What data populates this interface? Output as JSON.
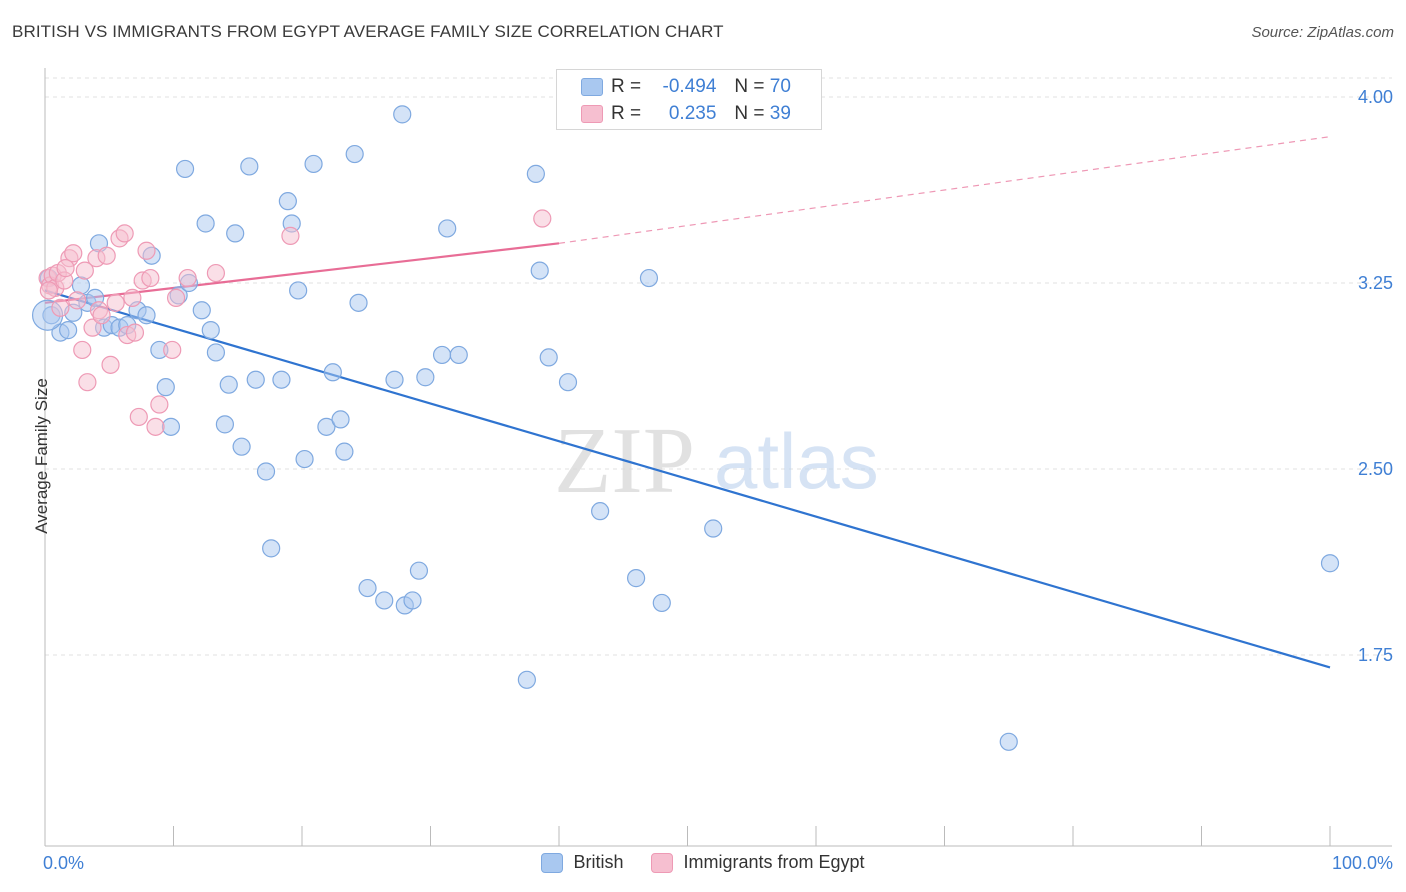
{
  "title": "BRITISH VS IMMIGRANTS FROM EGYPT AVERAGE FAMILY SIZE CORRELATION CHART",
  "source": "Source: ZipAtlas.com",
  "watermark": {
    "zip": "ZIP",
    "atlas": "atlas"
  },
  "legend": {
    "rows": [
      {
        "r_label": "R =",
        "r_value": "-0.494",
        "n_label": "N =",
        "n_value": "70"
      },
      {
        "r_label": "R =",
        "r_value": "0.235",
        "n_label": "N =",
        "n_value": "39"
      }
    ]
  },
  "bottom_legend": [
    "British",
    "Immigrants from Egypt"
  ],
  "colors": {
    "british_fill": "#a9c8f0",
    "british_stroke": "#7fa9e0",
    "british_line": "#2f74d0",
    "egypt_fill": "#f6bfd0",
    "egypt_stroke": "#ee9ab5",
    "egypt_line": "#e86d96",
    "axis_text": "#3f7fd4",
    "grid": "#e2e2e2"
  },
  "chart_data": {
    "type": "scatter",
    "title": "BRITISH VS IMMIGRANTS FROM EGYPT AVERAGE FAMILY SIZE CORRELATION CHART",
    "xlabel": "",
    "ylabel": "Average Family Size",
    "xlim": [
      0,
      100
    ],
    "ylim": [
      1.0,
      4.15
    ],
    "x_tick_labels": [
      "0.0%",
      "100.0%"
    ],
    "y_ticks": [
      1.75,
      2.5,
      3.25,
      4.0
    ],
    "y_tick_labels": [
      "1.75",
      "2.50",
      "3.25",
      "4.00"
    ],
    "grid": true,
    "legend_position": "top-center",
    "series": [
      {
        "name": "British",
        "r": -0.494,
        "n": 70,
        "trend": {
          "x": [
            0,
            100
          ],
          "y": [
            3.22,
            1.7
          ]
        },
        "points": [
          [
            0.3,
            3.27
          ],
          [
            0.5,
            3.12
          ],
          [
            1.2,
            3.05
          ],
          [
            1.8,
            3.06
          ],
          [
            2.2,
            3.13
          ],
          [
            2.8,
            3.24
          ],
          [
            3.3,
            3.17
          ],
          [
            3.9,
            3.19
          ],
          [
            4.2,
            3.41
          ],
          [
            4.6,
            3.07
          ],
          [
            5.2,
            3.08
          ],
          [
            5.8,
            3.07
          ],
          [
            6.4,
            3.08
          ],
          [
            7.2,
            3.14
          ],
          [
            7.9,
            3.12
          ],
          [
            8.3,
            3.36
          ],
          [
            8.9,
            2.98
          ],
          [
            9.4,
            2.83
          ],
          [
            9.8,
            2.67
          ],
          [
            10.4,
            3.2
          ],
          [
            10.9,
            3.71
          ],
          [
            11.2,
            3.25
          ],
          [
            12.2,
            3.14
          ],
          [
            12.5,
            3.49
          ],
          [
            12.9,
            3.06
          ],
          [
            13.3,
            2.97
          ],
          [
            14.0,
            2.68
          ],
          [
            14.3,
            2.84
          ],
          [
            14.8,
            3.45
          ],
          [
            15.3,
            2.59
          ],
          [
            15.9,
            3.72
          ],
          [
            16.4,
            2.86
          ],
          [
            17.2,
            2.49
          ],
          [
            17.6,
            2.18
          ],
          [
            18.4,
            2.86
          ],
          [
            18.9,
            3.58
          ],
          [
            19.2,
            3.49
          ],
          [
            19.7,
            3.22
          ],
          [
            20.2,
            2.54
          ],
          [
            20.9,
            3.73
          ],
          [
            21.9,
            2.67
          ],
          [
            22.4,
            2.89
          ],
          [
            23.0,
            2.7
          ],
          [
            23.3,
            2.57
          ],
          [
            24.1,
            3.77
          ],
          [
            24.4,
            3.17
          ],
          [
            25.1,
            2.02
          ],
          [
            26.4,
            1.97
          ],
          [
            27.2,
            2.86
          ],
          [
            27.8,
            3.93
          ],
          [
            28.0,
            1.95
          ],
          [
            28.6,
            1.97
          ],
          [
            29.1,
            2.09
          ],
          [
            29.6,
            2.87
          ],
          [
            30.9,
            2.96
          ],
          [
            31.3,
            3.47
          ],
          [
            32.2,
            2.96
          ],
          [
            37.5,
            1.65
          ],
          [
            38.2,
            3.69
          ],
          [
            38.5,
            3.3
          ],
          [
            39.2,
            2.95
          ],
          [
            40.7,
            2.85
          ],
          [
            43.2,
            2.33
          ],
          [
            46.0,
            2.06
          ],
          [
            47.0,
            3.27
          ],
          [
            48.0,
            1.96
          ],
          [
            52.0,
            2.26
          ],
          [
            75.0,
            1.4
          ],
          [
            100.0,
            2.12
          ],
          [
            0.2,
            3.12
          ]
        ]
      },
      {
        "name": "Immigrants from Egypt",
        "r": 0.235,
        "n": 39,
        "trend": {
          "x": [
            0,
            40
          ],
          "y": [
            3.17,
            3.41
          ]
        },
        "trend_extended": {
          "x": [
            40,
            100
          ],
          "y": [
            3.41,
            3.84
          ]
        },
        "points": [
          [
            0.2,
            3.27
          ],
          [
            0.4,
            3.24
          ],
          [
            0.6,
            3.28
          ],
          [
            0.8,
            3.23
          ],
          [
            1.0,
            3.29
          ],
          [
            1.2,
            3.15
          ],
          [
            1.5,
            3.26
          ],
          [
            1.9,
            3.35
          ],
          [
            2.2,
            3.37
          ],
          [
            2.5,
            3.18
          ],
          [
            2.9,
            2.98
          ],
          [
            3.1,
            3.3
          ],
          [
            3.3,
            2.85
          ],
          [
            3.7,
            3.07
          ],
          [
            4.0,
            3.35
          ],
          [
            4.2,
            3.14
          ],
          [
            4.4,
            3.12
          ],
          [
            4.8,
            3.36
          ],
          [
            5.1,
            2.92
          ],
          [
            5.5,
            3.17
          ],
          [
            5.8,
            3.43
          ],
          [
            6.2,
            3.45
          ],
          [
            6.4,
            3.04
          ],
          [
            6.8,
            3.19
          ],
          [
            7.0,
            3.05
          ],
          [
            7.3,
            2.71
          ],
          [
            7.6,
            3.26
          ],
          [
            7.9,
            3.38
          ],
          [
            8.2,
            3.27
          ],
          [
            8.6,
            2.67
          ],
          [
            8.9,
            2.76
          ],
          [
            9.9,
            2.98
          ],
          [
            10.2,
            3.19
          ],
          [
            11.1,
            3.27
          ],
          [
            13.3,
            3.29
          ],
          [
            19.1,
            3.44
          ],
          [
            38.7,
            3.51
          ],
          [
            0.3,
            3.22
          ],
          [
            1.6,
            3.31
          ]
        ]
      }
    ]
  }
}
